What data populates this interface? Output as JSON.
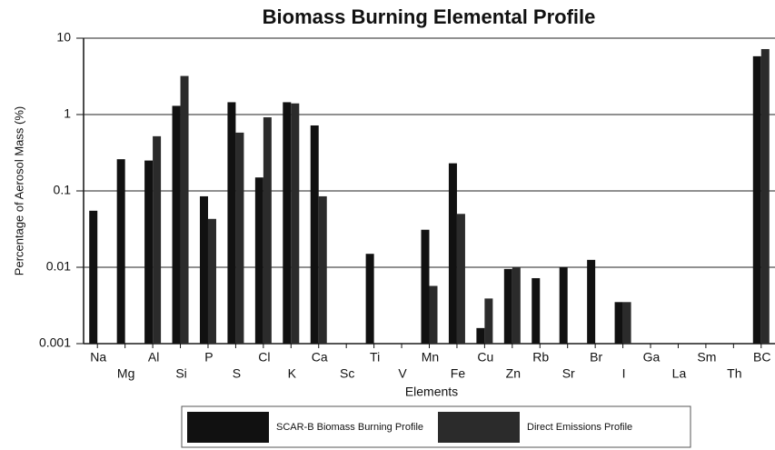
{
  "chart_data": {
    "type": "bar",
    "title": "Biomass Burning Elemental Profile",
    "x_label": "Elements",
    "y_label": "Percentage of Aerosol Mass (%)",
    "categories": [
      "Na",
      "Mg",
      "Al",
      "Si",
      "P",
      "S",
      "Cl",
      "K",
      "Ca",
      "Sc",
      "Ti",
      "V",
      "Mn",
      "Fe",
      "Cu",
      "Zn",
      "Rb",
      "Sr",
      "Br",
      "I",
      "Ga",
      "La",
      "Sm",
      "Th",
      "BC"
    ],
    "series": [
      {
        "name": "SCAR-B Biomass Burning Profile",
        "color": "#111111",
        "values": [
          0.055,
          0.26,
          0.25,
          1.3,
          0.085,
          1.45,
          0.15,
          1.45,
          0.72,
          null,
          0.015,
          null,
          0.031,
          0.23,
          0.0016,
          0.0095,
          0.0072,
          0.01,
          0.0125,
          0.0035,
          null,
          null,
          null,
          null,
          5.8
        ]
      },
      {
        "name": "Direct Emissions Profile",
        "color": "#2b2b2b",
        "values": [
          null,
          null,
          0.52,
          3.2,
          0.043,
          0.58,
          0.92,
          1.4,
          0.085,
          null,
          null,
          null,
          0.0057,
          0.05,
          0.0039,
          0.01,
          null,
          null,
          null,
          0.0035,
          null,
          null,
          null,
          null,
          7.2
        ]
      }
    ],
    "ylim": [
      0.001,
      10
    ],
    "yticks": [
      0.001,
      0.01,
      0.1,
      1,
      10
    ],
    "log_y": true,
    "grid": true
  }
}
